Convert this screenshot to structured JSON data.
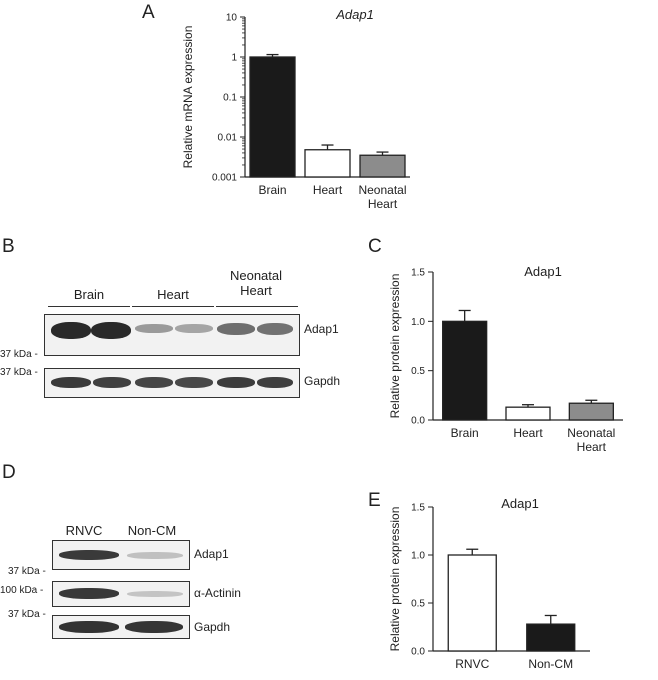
{
  "panels": {
    "a": {
      "letter": "A"
    },
    "b": {
      "letter": "B",
      "groups": [
        "Brain",
        "Heart",
        "Neonatal\nHeart"
      ],
      "blots": [
        {
          "protein": "Adap1",
          "marker": "37 kDa -"
        },
        {
          "protein": "Gapdh",
          "marker": "37 kDa -"
        }
      ]
    },
    "c": {
      "letter": "C"
    },
    "d": {
      "letter": "D",
      "groups": [
        "RNVC",
        "Non-CM"
      ],
      "blots": [
        {
          "protein": "Adap1",
          "marker": "37 kDa -"
        },
        {
          "protein": "α-Actinin",
          "marker": "100 kDa -"
        },
        {
          "protein": "Gapdh",
          "marker": "37 kDa -"
        }
      ]
    },
    "e": {
      "letter": "E"
    }
  },
  "chart_data": [
    {
      "id": "A",
      "type": "bar",
      "title": "Adap1",
      "ylabel": "Relative mRNA expression",
      "xlabel": "",
      "yscale": "log",
      "ylim": [
        0.001,
        10
      ],
      "yticks": [
        "0.001",
        "0.01",
        "0.1",
        "1",
        "10"
      ],
      "categories": [
        "Brain",
        "Heart",
        "Neonatal Heart"
      ],
      "values": [
        1.0,
        0.0048,
        0.0035
      ],
      "errors": [
        0.15,
        0.0015,
        0.0007
      ],
      "colors": [
        "#1a1a1a",
        "#ffffff",
        "#8c8c8c"
      ]
    },
    {
      "id": "C",
      "type": "bar",
      "title": "Adap1",
      "ylabel": "Relative protein expression",
      "xlabel": "",
      "ylim": [
        0,
        1.5
      ],
      "yticks": [
        "0.0",
        "0.5",
        "1.0",
        "1.5"
      ],
      "categories": [
        "Brain",
        "Heart",
        "Neonatal Heart"
      ],
      "values": [
        1.0,
        0.13,
        0.17
      ],
      "errors": [
        0.11,
        0.025,
        0.03
      ],
      "colors": [
        "#1a1a1a",
        "#ffffff",
        "#8c8c8c"
      ]
    },
    {
      "id": "E",
      "type": "bar",
      "title": "Adap1",
      "ylabel": "Relative protein expression",
      "xlabel": "",
      "ylim": [
        0,
        1.5
      ],
      "yticks": [
        "0.0",
        "0.5",
        "1.0",
        "1.5"
      ],
      "categories": [
        "RNVC",
        "Non-CM"
      ],
      "values": [
        1.0,
        0.28
      ],
      "errors": [
        0.06,
        0.09
      ],
      "colors": [
        "#ffffff",
        "#1a1a1a"
      ]
    }
  ]
}
